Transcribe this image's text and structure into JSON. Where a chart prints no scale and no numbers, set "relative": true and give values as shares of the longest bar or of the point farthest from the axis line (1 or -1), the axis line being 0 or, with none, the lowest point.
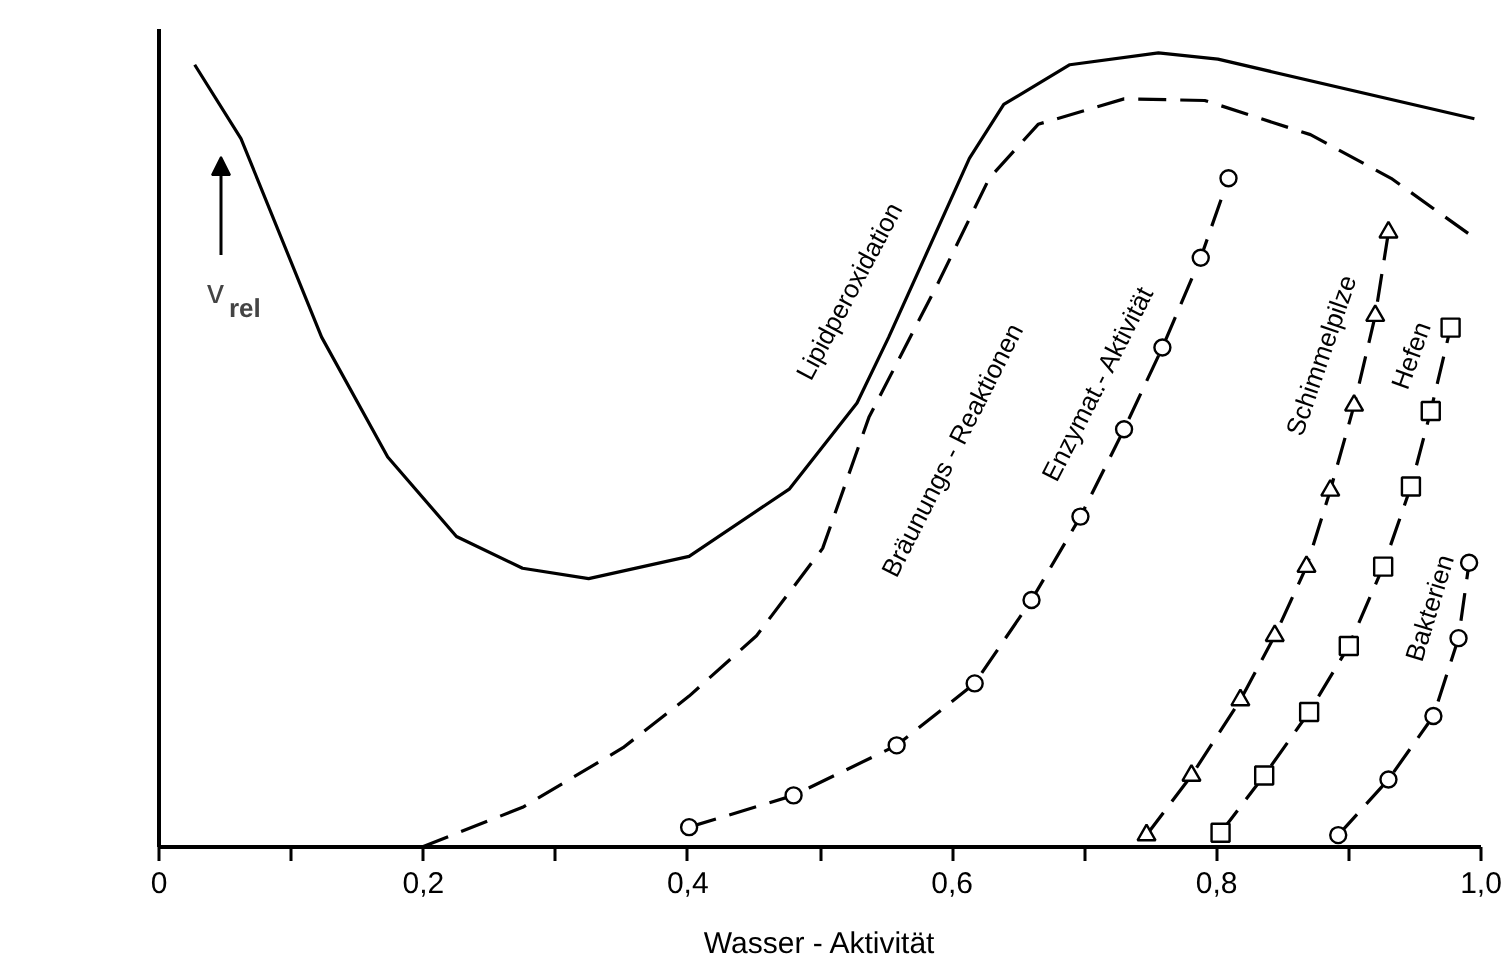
{
  "chart_data": {
    "type": "line",
    "relative": true,
    "xlabel": "Wasser - Aktivität",
    "ylabel": "v$_{rel}$",
    "xlim": [
      0,
      1.0
    ],
    "xticks": [
      {
        "value": 0,
        "label": "0"
      },
      {
        "value": 0.1,
        "label": null
      },
      {
        "value": 0.2,
        "label": "0,2"
      },
      {
        "value": 0.3,
        "label": null
      },
      {
        "value": 0.4,
        "label": "0,4"
      },
      {
        "value": 0.5,
        "label": null
      },
      {
        "value": 0.6,
        "label": "0,6"
      },
      {
        "value": 0.7,
        "label": null
      },
      {
        "value": 0.8,
        "label": "0,8"
      },
      {
        "value": 0.9,
        "label": null
      },
      {
        "value": 1.0,
        "label": "1,0"
      }
    ],
    "grid": false,
    "series": [
      {
        "name": "Lipidperoxidation",
        "color": "#000000",
        "line_style": "solid",
        "marker": "none",
        "x": [
          0.027,
          0.062,
          0.123,
          0.173,
          0.225,
          0.275,
          0.325,
          0.401,
          0.477,
          0.528,
          0.552,
          0.613,
          0.639,
          0.689,
          0.756,
          0.801,
          0.995
        ],
        "values": [
          0.985,
          0.892,
          0.642,
          0.491,
          0.391,
          0.351,
          0.338,
          0.366,
          0.451,
          0.559,
          0.642,
          0.867,
          0.935,
          0.985,
          1.0,
          0.992,
          0.917
        ]
      },
      {
        "name": "Bräunungs - Reaktionen",
        "color": "#000000",
        "line_style": "dashed",
        "marker": "none",
        "x": [
          0.199,
          0.275,
          0.351,
          0.401,
          0.452,
          0.502,
          0.537,
          0.589,
          0.628,
          0.665,
          0.73,
          0.791,
          0.871,
          0.932,
          0.995
        ],
        "values": [
          0.0,
          0.05,
          0.125,
          0.19,
          0.266,
          0.376,
          0.541,
          0.709,
          0.842,
          0.91,
          0.942,
          0.94,
          0.897,
          0.842,
          0.767
        ]
      },
      {
        "name": "Enzymat.- Aktivität",
        "color": "#000000",
        "line_style": "dashed",
        "marker": "circle",
        "x": [
          0.401,
          0.48,
          0.558,
          0.617,
          0.66,
          0.697,
          0.73,
          0.759,
          0.788,
          0.809
        ],
        "values": [
          0.025,
          0.065,
          0.128,
          0.206,
          0.311,
          0.416,
          0.526,
          0.629,
          0.742,
          0.842
        ]
      },
      {
        "name": "Schimmelpilze",
        "color": "#000000",
        "line_style": "dashed",
        "marker": "triangle",
        "x": [
          0.747,
          0.781,
          0.818,
          0.844,
          0.868,
          0.886,
          0.904,
          0.92,
          0.93
        ],
        "values": [
          0.015,
          0.09,
          0.185,
          0.266,
          0.353,
          0.449,
          0.556,
          0.669,
          0.774
        ]
      },
      {
        "name": "Hefen",
        "color": "#000000",
        "line_style": "dashed",
        "marker": "square",
        "x": [
          0.803,
          0.836,
          0.87,
          0.9,
          0.926,
          0.947,
          0.962,
          0.977
        ],
        "values": [
          0.018,
          0.09,
          0.17,
          0.253,
          0.353,
          0.454,
          0.549,
          0.654
        ]
      },
      {
        "name": "Bakterien",
        "color": "#000000",
        "line_style": "dashed",
        "marker": "circle",
        "x": [
          0.892,
          0.93,
          0.964,
          0.983,
          0.991
        ],
        "values": [
          0.015,
          0.085,
          0.165,
          0.263,
          0.358
        ]
      }
    ]
  }
}
